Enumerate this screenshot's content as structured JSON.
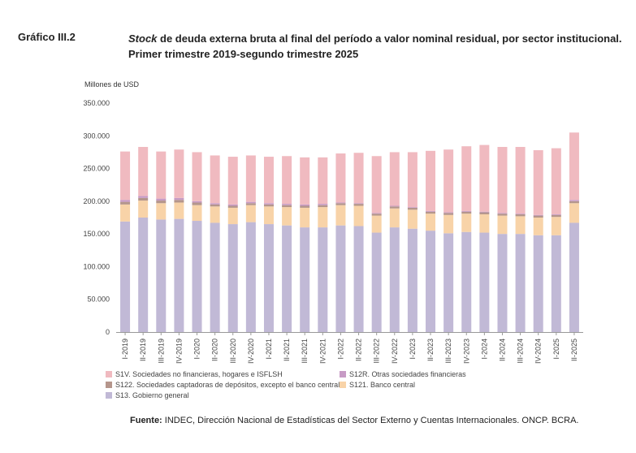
{
  "header": {
    "figure_label": "Gráfico III.2",
    "title_italic": "Stock",
    "title_rest": " de deuda externa bruta al final del período a valor nominal residual, por sector institucional.",
    "subtitle": "Primer trimestre 2019-segundo trimestre 2025"
  },
  "source": {
    "label": "Fuente:",
    "text": " INDEC, Dirección Nacional de Estadísticas del Sector Externo y Cuentas Internacionales. ONCP. BCRA."
  },
  "colors": {
    "S13": "#c1b9d6",
    "S121": "#f8d3a8",
    "S122": "#b5968c",
    "S12R": "#c79bc5",
    "S1V": "#f0bac0"
  },
  "chart_data": {
    "type": "bar",
    "stacked": true,
    "ylabel": "Millones de USD",
    "ylim": [
      0,
      350000
    ],
    "yticks": [
      "0",
      "50.000",
      "100.000",
      "150.000",
      "200.000",
      "250.000",
      "300.000",
      "350.000"
    ],
    "grid": false,
    "legend_position": "bottom",
    "categories": [
      "I-2019",
      "II-2019",
      "III-2019",
      "IV-2019",
      "I-2020",
      "II-2020",
      "III-2020",
      "IV-2020",
      "I-2021",
      "II-2021",
      "III-2021",
      "IV-2021",
      "I-2022",
      "II-2022",
      "III-2022",
      "IV-2022",
      "I-2023",
      "II-2023",
      "III-2023",
      "IV-2023",
      "I-2024",
      "II-2024",
      "III-2024",
      "IV-2024",
      "I-2025",
      "II-2025"
    ],
    "series": [
      {
        "key": "S13",
        "name": "S13. Gobierno general",
        "values": [
          169000,
          175000,
          172000,
          173000,
          170000,
          167000,
          165000,
          168000,
          165000,
          163000,
          160000,
          160000,
          163000,
          162000,
          152000,
          160000,
          158000,
          155000,
          151000,
          153000,
          152000,
          150000,
          150000,
          148000,
          148000,
          167000
        ]
      },
      {
        "key": "S121",
        "name": "S121. Banco central",
        "values": [
          26000,
          26000,
          25000,
          25000,
          24000,
          25000,
          25000,
          26000,
          27000,
          28000,
          30000,
          31000,
          31000,
          31000,
          26000,
          29000,
          29000,
          26000,
          28000,
          28000,
          28000,
          28000,
          27000,
          27000,
          28000,
          30000
        ]
      },
      {
        "key": "S122",
        "name": "S122. Sociedades captadoras de depósitos, excepto el banco central",
        "values": [
          4000,
          4000,
          4000,
          4000,
          4000,
          3000,
          3000,
          3000,
          3000,
          3000,
          3000,
          3000,
          3000,
          3000,
          3000,
          3000,
          3000,
          3000,
          3000,
          3000,
          3000,
          3000,
          3000,
          3000,
          3000,
          3000
        ]
      },
      {
        "key": "S12R",
        "name": "S12R. Otras sociedades financieras",
        "values": [
          3000,
          3000,
          3000,
          3000,
          2000,
          2000,
          2000,
          2000,
          2000,
          2000,
          2000,
          2000,
          1000,
          1000,
          1000,
          1000,
          1000,
          1000,
          1000,
          1000,
          1000,
          1000,
          1000,
          1000,
          1000,
          2000
        ]
      },
      {
        "key": "S1V",
        "name": "S1V. Sociedades no financieras, hogares e ISFLSH",
        "values": [
          74000,
          75000,
          72000,
          74000,
          75000,
          73000,
          73000,
          71000,
          71000,
          73000,
          72000,
          71000,
          75000,
          77000,
          87000,
          82000,
          84000,
          92000,
          96000,
          99000,
          102000,
          101000,
          102000,
          99000,
          101000,
          103000
        ]
      }
    ]
  }
}
